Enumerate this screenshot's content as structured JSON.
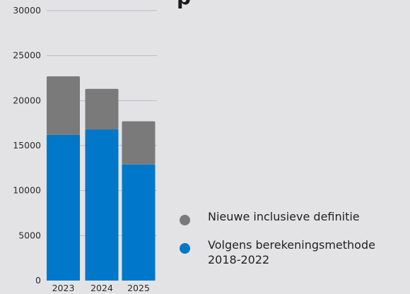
{
  "title_fragment": "p",
  "chart_data": {
    "type": "bar",
    "stacked": true,
    "categories": [
      "2023",
      "2024",
      "2025"
    ],
    "series": [
      {
        "name": "Volgens berekeningsmethode 2018-2022",
        "color": "#0077c8",
        "values": [
          16200,
          16800,
          12900
        ]
      },
      {
        "name": "Nieuwe inclusieve definitie",
        "color": "#7a7a7a",
        "values": [
          6500,
          4500,
          4800
        ]
      }
    ],
    "yticks": [
      0,
      5000,
      10000,
      15000,
      20000,
      25000,
      30000
    ],
    "ylim": [
      0,
      30000
    ],
    "grid": true,
    "legend_position": "right"
  },
  "legend": {
    "items": [
      {
        "label": "Nieuwe inclusieve definitie",
        "color": "#7a7a7a"
      },
      {
        "label": "Volgens berekeningsmethode\n2018-2022",
        "color": "#0077c8"
      }
    ]
  }
}
